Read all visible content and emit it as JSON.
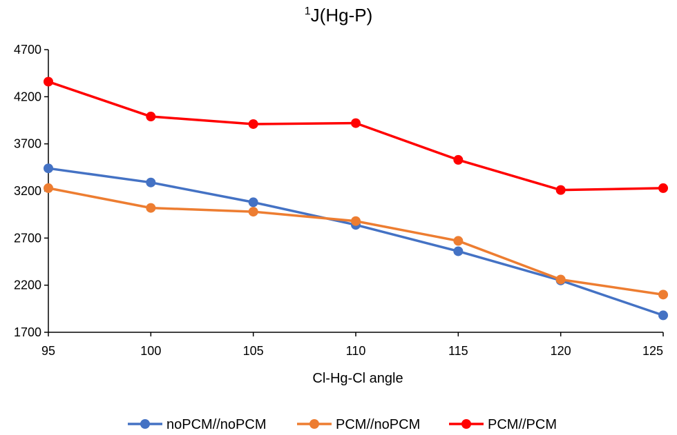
{
  "chart_data": {
    "type": "line",
    "title_superscript": "1",
    "title": "J(Hg-P)",
    "xlabel": "Cl-Hg-Cl angle",
    "ylabel": "",
    "x": [
      95,
      100,
      105,
      110,
      115,
      120,
      125
    ],
    "x_ticks": [
      "95",
      "100",
      "105",
      "110",
      "115",
      "120",
      "125"
    ],
    "y_ticks": [
      "1700",
      "2200",
      "2700",
      "3200",
      "3700",
      "4200",
      "4700"
    ],
    "ylim": [
      1700,
      4700
    ],
    "xlim": [
      95,
      125
    ],
    "grid": false,
    "legend_position": "bottom",
    "series": [
      {
        "name": "noPCM//noPCM",
        "color": "#4472C4",
        "values": [
          3440,
          3290,
          3080,
          2840,
          2560,
          2250,
          1880
        ]
      },
      {
        "name": "PCM//noPCM",
        "color": "#ED7D31",
        "values": [
          3230,
          3020,
          2980,
          2880,
          2670,
          2260,
          2100
        ]
      },
      {
        "name": "PCM//PCM",
        "color": "#FF0000",
        "values": [
          4360,
          3990,
          3910,
          3920,
          3530,
          3210,
          3230
        ]
      }
    ]
  }
}
